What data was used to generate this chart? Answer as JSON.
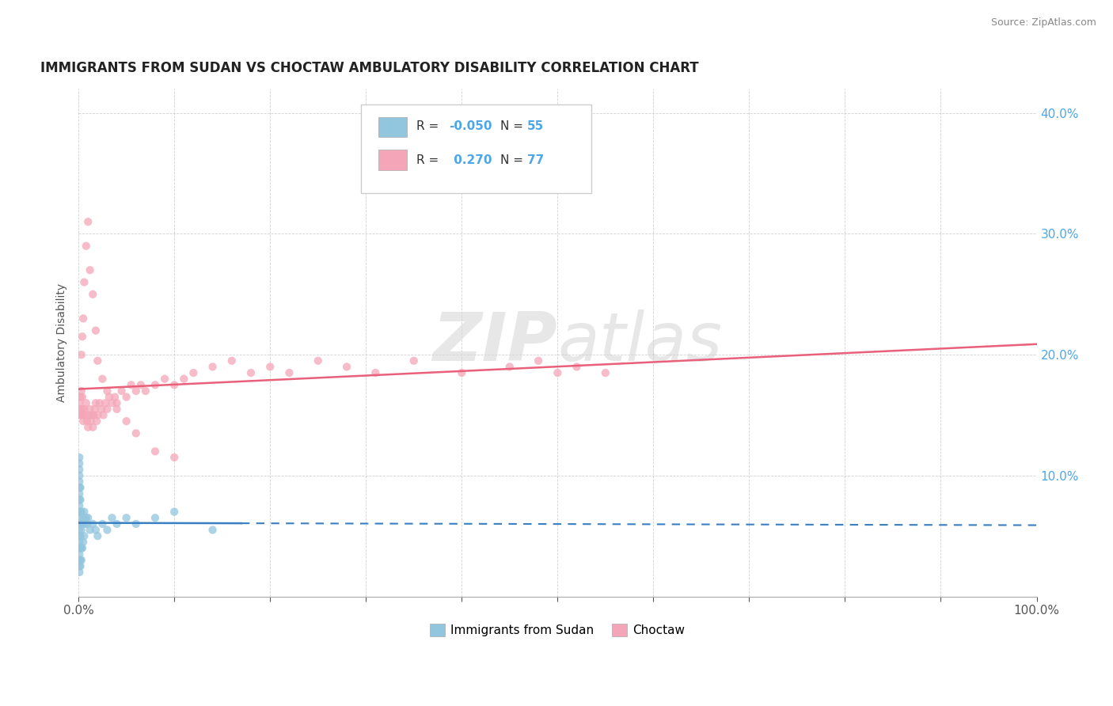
{
  "title": "IMMIGRANTS FROM SUDAN VS CHOCTAW AMBULATORY DISABILITY CORRELATION CHART",
  "source": "Source: ZipAtlas.com",
  "ylabel": "Ambulatory Disability",
  "blue_color": "#92c5de",
  "pink_color": "#f4a6b8",
  "blue_line_color": "#3a7fc1",
  "pink_line_color": "#e8607a",
  "watermark_zip": "ZIP",
  "watermark_atlas": "atlas",
  "blue_scatter_x": [
    0.001,
    0.001,
    0.001,
    0.001,
    0.001,
    0.001,
    0.001,
    0.001,
    0.001,
    0.001,
    0.001,
    0.001,
    0.001,
    0.001,
    0.001,
    0.001,
    0.001,
    0.001,
    0.001,
    0.001,
    0.002,
    0.002,
    0.002,
    0.002,
    0.002,
    0.002,
    0.002,
    0.002,
    0.003,
    0.003,
    0.003,
    0.003,
    0.004,
    0.004,
    0.005,
    0.005,
    0.006,
    0.006,
    0.007,
    0.008,
    0.009,
    0.01,
    0.012,
    0.015,
    0.018,
    0.02,
    0.025,
    0.03,
    0.035,
    0.04,
    0.05,
    0.06,
    0.08,
    0.1,
    0.14
  ],
  "blue_scatter_y": [
    0.02,
    0.025,
    0.03,
    0.035,
    0.04,
    0.045,
    0.05,
    0.055,
    0.06,
    0.065,
    0.07,
    0.075,
    0.08,
    0.085,
    0.09,
    0.095,
    0.1,
    0.105,
    0.11,
    0.115,
    0.025,
    0.03,
    0.04,
    0.05,
    0.06,
    0.07,
    0.08,
    0.09,
    0.03,
    0.04,
    0.055,
    0.07,
    0.04,
    0.06,
    0.045,
    0.065,
    0.05,
    0.07,
    0.06,
    0.065,
    0.06,
    0.065,
    0.055,
    0.06,
    0.055,
    0.05,
    0.06,
    0.055,
    0.065,
    0.06,
    0.065,
    0.06,
    0.065,
    0.07,
    0.055
  ],
  "pink_scatter_x": [
    0.001,
    0.001,
    0.002,
    0.002,
    0.003,
    0.003,
    0.004,
    0.004,
    0.005,
    0.005,
    0.006,
    0.007,
    0.008,
    0.009,
    0.01,
    0.011,
    0.012,
    0.013,
    0.014,
    0.015,
    0.016,
    0.017,
    0.018,
    0.019,
    0.02,
    0.022,
    0.024,
    0.026,
    0.028,
    0.03,
    0.032,
    0.035,
    0.038,
    0.04,
    0.045,
    0.05,
    0.055,
    0.06,
    0.065,
    0.07,
    0.08,
    0.09,
    0.1,
    0.11,
    0.12,
    0.14,
    0.16,
    0.18,
    0.2,
    0.22,
    0.25,
    0.28,
    0.31,
    0.35,
    0.4,
    0.45,
    0.48,
    0.5,
    0.52,
    0.55,
    0.003,
    0.004,
    0.005,
    0.006,
    0.008,
    0.01,
    0.012,
    0.015,
    0.018,
    0.02,
    0.025,
    0.03,
    0.04,
    0.05,
    0.06,
    0.08,
    0.1
  ],
  "pink_scatter_y": [
    0.15,
    0.16,
    0.155,
    0.165,
    0.15,
    0.17,
    0.155,
    0.165,
    0.15,
    0.145,
    0.155,
    0.15,
    0.16,
    0.145,
    0.14,
    0.15,
    0.155,
    0.145,
    0.15,
    0.14,
    0.15,
    0.155,
    0.16,
    0.145,
    0.15,
    0.16,
    0.155,
    0.15,
    0.16,
    0.155,
    0.165,
    0.16,
    0.165,
    0.16,
    0.17,
    0.165,
    0.175,
    0.17,
    0.175,
    0.17,
    0.175,
    0.18,
    0.175,
    0.18,
    0.185,
    0.19,
    0.195,
    0.185,
    0.19,
    0.185,
    0.195,
    0.19,
    0.185,
    0.195,
    0.185,
    0.19,
    0.195,
    0.185,
    0.19,
    0.185,
    0.2,
    0.215,
    0.23,
    0.26,
    0.29,
    0.31,
    0.27,
    0.25,
    0.22,
    0.195,
    0.18,
    0.17,
    0.155,
    0.145,
    0.135,
    0.12,
    0.115
  ],
  "blue_R": -0.05,
  "pink_R": 0.27,
  "blue_N": 55,
  "pink_N": 77
}
